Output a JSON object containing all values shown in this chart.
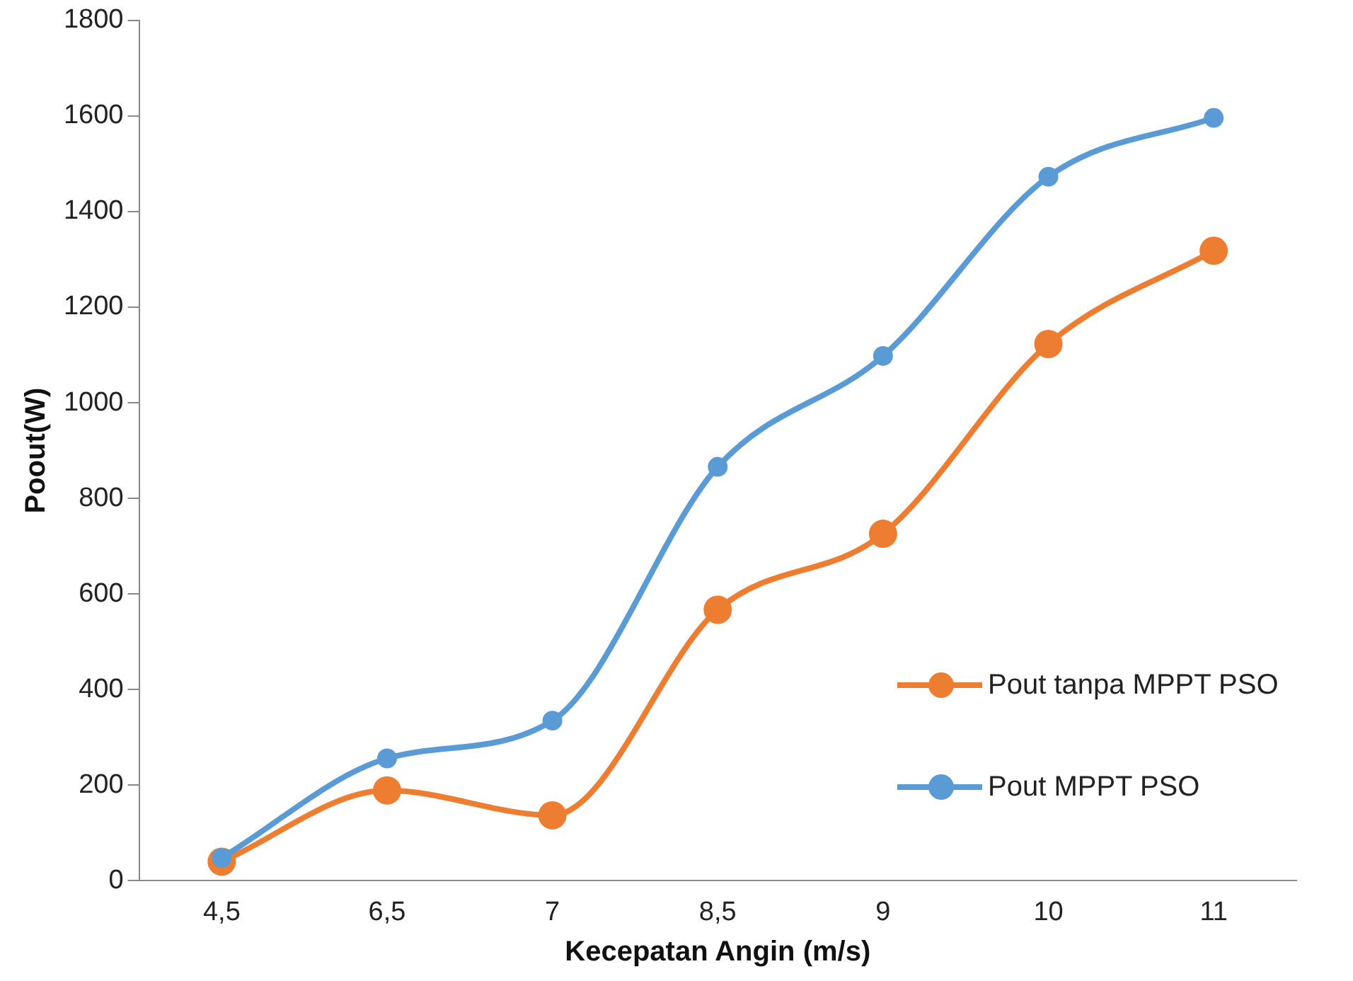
{
  "chart_data": {
    "type": "line",
    "xlabel": "Kecepatan Angin (m/s)",
    "ylabel": "Poout(W)",
    "categories": [
      "4,5",
      "6,5",
      "7",
      "8,5",
      "9",
      "10",
      "11"
    ],
    "series": [
      {
        "name": "Pout tanpa MPPT PSO",
        "color": "#ed7d31",
        "values": [
          40,
          189,
          137,
          567,
          726,
          1123,
          1318
        ]
      },
      {
        "name": "Pout MPPT PSO",
        "color": "#5b9bd5",
        "values": [
          48,
          256,
          335,
          866,
          1098,
          1473,
          1596
        ]
      }
    ],
    "ylim": [
      0,
      1800
    ],
    "yticks": [
      0,
      200,
      400,
      600,
      800,
      1000,
      1200,
      1400,
      1600,
      1800
    ],
    "grid": false,
    "legend": "right",
    "marker": "circle",
    "line_style": "solid"
  }
}
